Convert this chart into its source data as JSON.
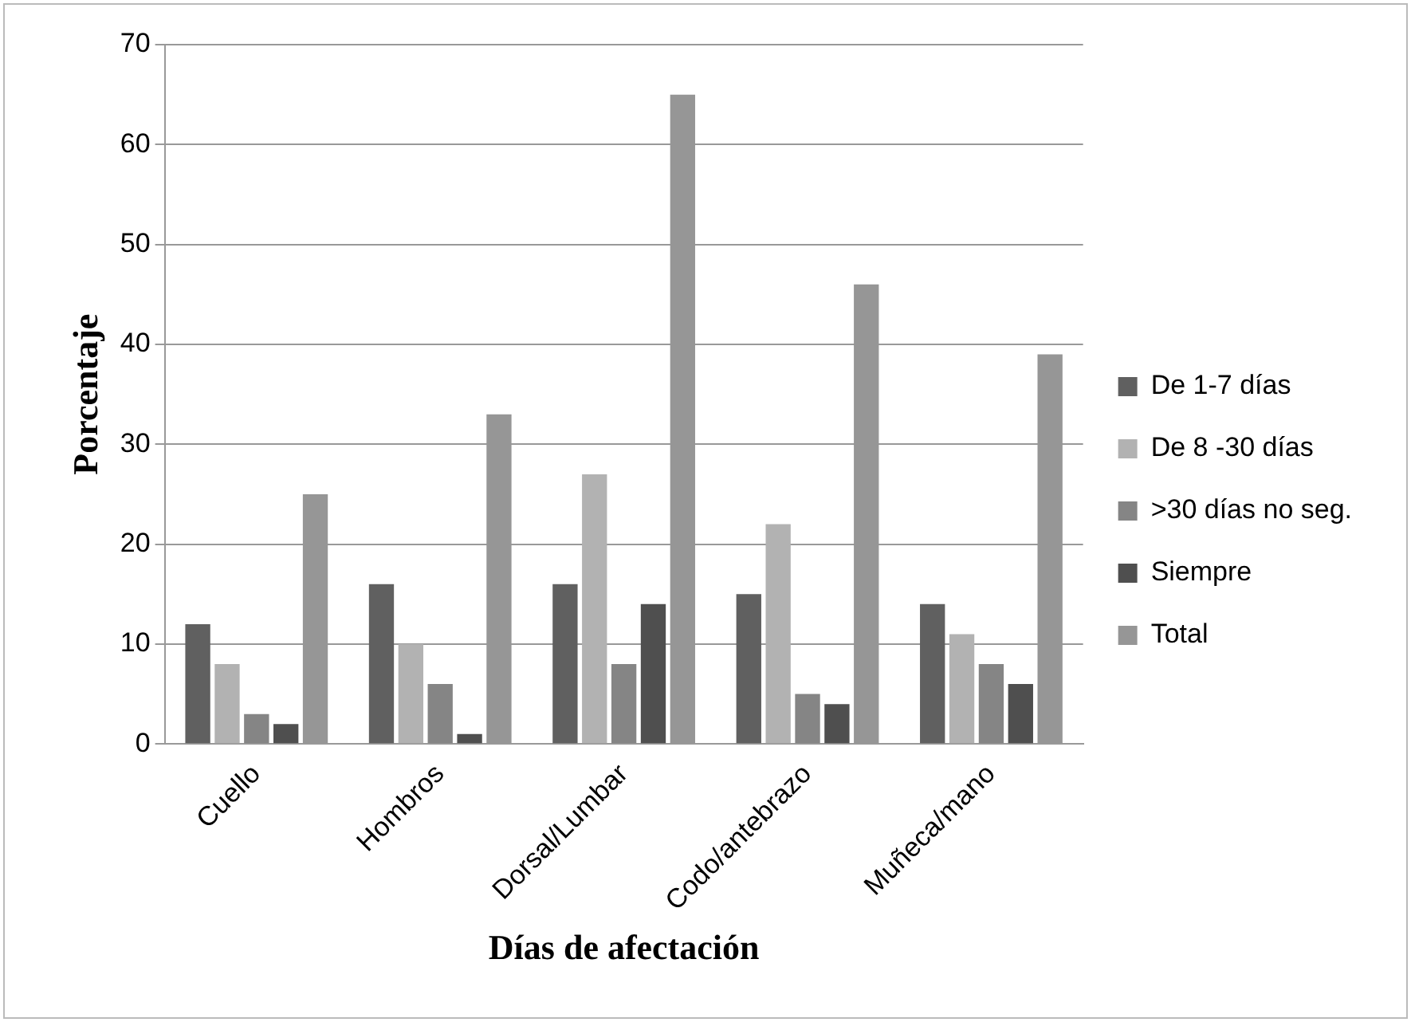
{
  "chart_data": {
    "type": "bar",
    "xlabel": "Días de afectación",
    "ylabel": "Porcentaje",
    "categories": [
      "Cuello",
      "Hombros",
      "Dorsal/Lumbar",
      "Codo/antebrazo",
      "Muñeca/mano"
    ],
    "series": [
      {
        "name": "De 1-7 días",
        "color": "#606060",
        "values": [
          12,
          16,
          16,
          15,
          14
        ]
      },
      {
        "name": "De 8 -30 días",
        "color": "#b2b2b2",
        "values": [
          8,
          10,
          27,
          22,
          11
        ]
      },
      {
        "name": ">30 días no seg.",
        "color": "#858585",
        "values": [
          3,
          6,
          8,
          5,
          8
        ]
      },
      {
        "name": "Siempre",
        "color": "#4f4f4f",
        "values": [
          2,
          1,
          14,
          4,
          6
        ]
      },
      {
        "name": "Total",
        "color": "#969696",
        "values": [
          25,
          33,
          65,
          46,
          39
        ]
      }
    ],
    "ylim": [
      0,
      70
    ],
    "yticks": [
      0,
      10,
      20,
      30,
      40,
      50,
      60,
      70
    ],
    "grid": "y",
    "legend": "right"
  }
}
